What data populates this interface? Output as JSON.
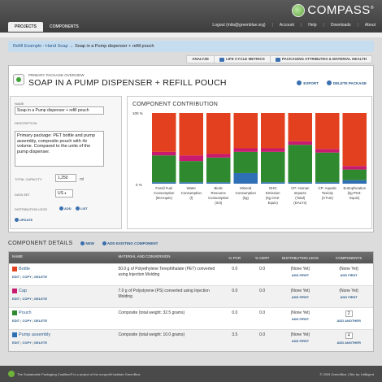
{
  "app": {
    "logo_text": "COMPASS",
    "logo_mark": "®"
  },
  "tabs": [
    {
      "label": "PROJECTS"
    },
    {
      "label": "COMPONENTS"
    }
  ],
  "toplinks": {
    "logout": "Logout (mila@greenblue.org)",
    "account": "Account",
    "help": "Help",
    "downloads": "Downloads",
    "about": "About"
  },
  "breadcrumb": {
    "parent": "Refill Example - Hand Soap",
    "arrow": "→",
    "current": "Soap in a Pump dispenser + refill pouch"
  },
  "subnav": {
    "analyze": "ANALYZE",
    "lifecycle": "LIFE CYCLE METRICS",
    "packaging": "PACKAGING ATTRIBUTES & MATERIAL HEALTH"
  },
  "overview": {
    "label": "PRIMARY PACKAGE OVERVIEW",
    "title": "SOAP IN A PUMP DISPENSER + REFILL POUCH",
    "export": "EXPORT",
    "delete": "DELETE PACKAGE"
  },
  "form": {
    "name_label": "NAME",
    "name_value": "Soap in a Pump dispenser + refill pouch",
    "desc_label": "DESCRIPTION",
    "desc_value": "Primary package: PET bottle and pump assembly, composite pouch with 4x volume. Compared to the units of the pump dispenser.",
    "capacity_label": "TOTAL CAPACITY:",
    "capacity_value": "1,250",
    "capacity_unit": "ml",
    "dataset_label": "DATA SET",
    "dataset_value": "US",
    "legs_label": "DISTRIBUTION LEGS",
    "add": "ADD",
    "list": "LIST",
    "update": "UPDATE"
  },
  "chart_data": {
    "type": "bar",
    "title": "COMPONENT CONTRIBUTION",
    "ylim": [
      0,
      100
    ],
    "yticks": [
      "100 %",
      "0 %"
    ],
    "categories": [
      "Fossil Fuel Consumption (MJ-equiv)",
      "Water Consumption (l)",
      "Biotic Resource Consumption (m3)",
      "Mineral Consumption (kg)",
      "GHG Emission (kg CO2-Equiv)",
      "CP: Human Impacts (Total) (DALYs)",
      "CP: Aquatic Toxicity (CTUe)",
      "Eutrophication (kg PO4-Equiv)"
    ],
    "category_lines": [
      [
        "Fossil Fuel",
        "Consumption",
        "(MJ-equiv)"
      ],
      [
        "Water",
        "Consumption",
        "(l)"
      ],
      [
        "Biotic",
        "Resource",
        "Consumption",
        "(m3)"
      ],
      [
        "Mineral",
        "Consumption",
        "(kg)"
      ],
      [
        "GHG",
        "Emission",
        "(kg CO2-",
        "Equiv)"
      ],
      [
        "CP: Human",
        "Impacts",
        "(Total)",
        "(DALYs)"
      ],
      [
        "CP: Aquatic",
        "Toxicity",
        "(CTUe)"
      ],
      [
        "Eutrophication",
        "(kg PO4-",
        "Equiv)"
      ]
    ],
    "series": [
      {
        "name": "Pump assembly",
        "color": "#2f6fb5",
        "values": [
          2,
          2,
          2,
          15,
          2,
          2,
          2,
          5
        ]
      },
      {
        "name": "Pouch",
        "color": "#2f8a2f",
        "values": [
          38,
          30,
          35,
          30,
          43,
          53,
          42,
          15
        ]
      },
      {
        "name": "Cap",
        "color": "#c81a6e",
        "values": [
          5,
          8,
          5,
          5,
          5,
          5,
          5,
          5
        ]
      },
      {
        "name": "Bottle",
        "color": "#e2401f",
        "values": [
          55,
          60,
          58,
          50,
          50,
          40,
          51,
          75
        ]
      }
    ]
  },
  "details": {
    "title": "COMPONENT DETAILS",
    "new": "NEW",
    "add_existing": "ADD EXISTING COMPONENT"
  },
  "table": {
    "headers": [
      "NAME",
      "MATERIAL AND CONVERSION",
      "% PCR",
      "% CERT",
      "DISTRIBUTION LEGS",
      "COMPONENTS"
    ],
    "rows": [
      {
        "name": "Bottle",
        "color": "#e2401f",
        "material": "50.0 g of Polyethylene Terephthalate (PET) converted using Injection Molding",
        "pcr": "0.0",
        "cert": "0.0",
        "legs": "(None Yet)",
        "legs_link": "ADD FIRST",
        "comp": "(None Yet)",
        "comp_link": "ADD FIRST",
        "stepper": ""
      },
      {
        "name": "Cap",
        "color": "#c81a6e",
        "material": "7.0 g of Polystyrene (PS) converted using Injection Molding",
        "pcr": "0.0",
        "cert": "0.0",
        "legs": "(None Yet)",
        "legs_link": "ADD FIRST",
        "comp": "(None Yet)",
        "comp_link": "ADD FIRST",
        "stepper": ""
      },
      {
        "name": "Pouch",
        "color": "#2f8a2f",
        "material": "Composite (total weight: 32.5 grams)",
        "pcr": "0.0",
        "cert": "0.0",
        "legs": "(None Yet)",
        "legs_link": "ADD FIRST",
        "comp": "",
        "comp_link": "ADD ANOTHER",
        "stepper": "2"
      },
      {
        "name": "Pump assembly",
        "color": "#2f6fb5",
        "material": "Composite (total weight: 10.0 grams)",
        "pcr": "3.5",
        "cert": "0.0",
        "legs": "(None Yet)",
        "legs_link": "ADD FIRST",
        "comp": "",
        "comp_link": "ADD ANOTHER",
        "stepper": "4"
      }
    ],
    "row_links": {
      "edit": "EDIT",
      "copy": "COPY",
      "delete": "DELETE",
      "sep": "|"
    }
  },
  "footer": {
    "left": "The Sustainable Packaging Coalition® is a project of the nonprofit institute GreenBlue",
    "right": "© 2009 GreenBlue | Site by: Intilligent"
  }
}
